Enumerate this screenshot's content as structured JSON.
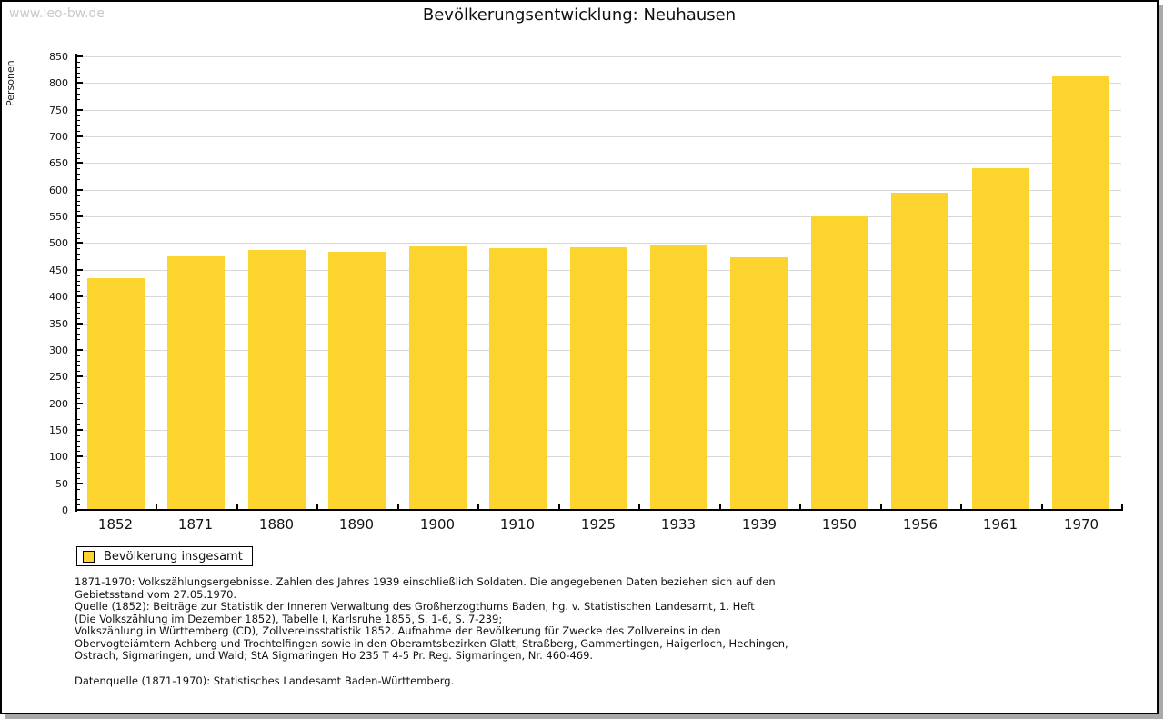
{
  "watermark": "www.leo-bw.de",
  "header": {
    "title": "Bevölkerungsentwicklung: Neuhausen"
  },
  "chart_data": {
    "type": "bar",
    "title": "Bevölkerungsentwicklung: Neuhausen",
    "xlabel": "",
    "ylabel": "Personen",
    "categories": [
      "1852",
      "1871",
      "1880",
      "1890",
      "1900",
      "1910",
      "1925",
      "1933",
      "1939",
      "1950",
      "1956",
      "1961",
      "1970"
    ],
    "values": [
      435,
      475,
      488,
      484,
      494,
      491,
      492,
      498,
      473,
      551,
      595,
      640,
      813
    ],
    "series_name": "Bevölkerung insgesamt",
    "ylim": [
      0,
      850
    ],
    "ytick_step": 50,
    "yminor_step": 10,
    "grid": "horizontal",
    "legend_position": "bottom-left",
    "bar_color": "#fcd42d"
  },
  "legend": {
    "label": "Bevölkerung insgesamt",
    "swatch_color": "#fcd42d"
  },
  "footnote": {
    "lines": [
      "1871-1970: Volkszählungsergebnisse. Zahlen des Jahres 1939 einschließlich Soldaten. Die angegebenen Daten beziehen sich auf den",
      "Gebietsstand vom 27.05.1970.",
      "Quelle (1852): Beiträge zur Statistik der Inneren Verwaltung des Großherzogthums Baden, hg. v. Statistischen Landesamt, 1. Heft",
      "(Die Volkszählung im Dezember 1852), Tabelle I, Karlsruhe 1855, S. 1-6, S. 7-239;",
      "Volkszählung in Württemberg (CD), Zollvereinsstatistik 1852. Aufnahme der Bevölkerung für Zwecke des Zollvereins in den",
      "Obervogteiämtern Achberg und Trochtelfingen sowie in den Oberamtsbezirken Glatt, Straßberg, Gammertingen, Haigerloch, Hechingen,",
      "Ostrach, Sigmaringen, und Wald; StA Sigmaringen Ho 235 T 4-5 Pr. Reg. Sigmaringen, Nr. 460-469."
    ],
    "source": "Datenquelle (1871-1970): Statistisches Landesamt Baden-Württemberg."
  },
  "colors": {
    "bar": "#fcd42d",
    "gridline": "#d8d8d8",
    "axis": "#000000",
    "watermark": "#c9c9c9",
    "frame_shadow": "#a9a9a9"
  }
}
